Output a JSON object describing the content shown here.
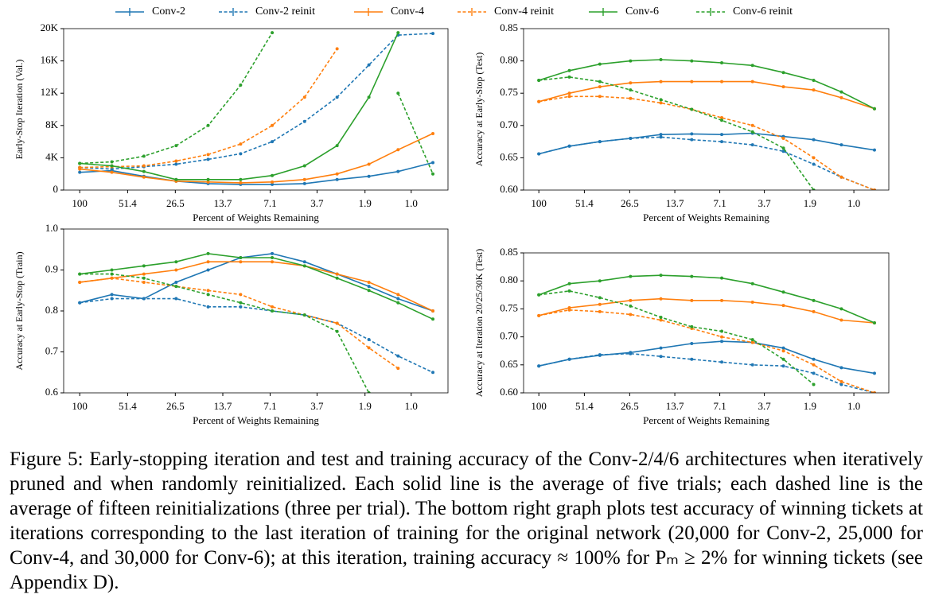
{
  "chart_data": [
    {
      "type": "line",
      "xlabel": "Percent of Weights Remaining",
      "ylabel": "Early-Stop Iteration (Val.)",
      "xlog": true,
      "legend": "top",
      "x": [
        100,
        64,
        41,
        26.2,
        16.8,
        10.7,
        6.9,
        4.4,
        2.8,
        1.8,
        1.2,
        0.74
      ],
      "xlim": [
        125,
        0.6
      ],
      "xticks": [
        100,
        51.4,
        26.5,
        13.7,
        7.1,
        3.7,
        1.9,
        {
          "value": 1,
          "label": "1.0"
        }
      ],
      "ylim": [
        0,
        20000
      ],
      "yticks": [
        0,
        {
          "value": 4000,
          "label": "4K"
        },
        {
          "value": 8000,
          "label": "8K"
        },
        {
          "value": 12000,
          "label": "12K"
        },
        {
          "value": 16000,
          "label": "16K"
        },
        {
          "value": 20000,
          "label": "20K"
        }
      ],
      "series": [
        {
          "name": "Conv-2",
          "color": "#1f77b4",
          "dashed": false,
          "values": [
            2200,
            2400,
            1700,
            1100,
            800,
            700,
            700,
            800,
            1300,
            1700,
            2300,
            3400
          ]
        },
        {
          "name": "Conv-2 reinit",
          "color": "#1f77b4",
          "dashed": true,
          "values": [
            2800,
            2600,
            2900,
            3200,
            3800,
            4500,
            6000,
            8500,
            11500,
            15500,
            19200,
            19400
          ]
        },
        {
          "name": "Conv-4",
          "color": "#ff7f0e",
          "dashed": false,
          "values": [
            2600,
            2200,
            1600,
            1100,
            1000,
            900,
            1000,
            1300,
            2000,
            3200,
            5000,
            7000
          ]
        },
        {
          "name": "Conv-4 reinit",
          "color": "#ff7f0e",
          "dashed": true,
          "values": [
            2800,
            2900,
            3000,
            3600,
            4400,
            5700,
            8000,
            11500,
            17500,
            null,
            null,
            null
          ]
        },
        {
          "name": "Conv-6",
          "color": "#2ca02c",
          "dashed": false,
          "values": [
            3300,
            3000,
            2300,
            1300,
            1300,
            1300,
            1800,
            3000,
            5500,
            11500,
            19500,
            null
          ]
        },
        {
          "name": "Conv-6 reinit",
          "color": "#2ca02c",
          "dashed": true,
          "values": [
            3300,
            3500,
            4200,
            5500,
            8000,
            13000,
            19500,
            null,
            null,
            null,
            12000,
            2000
          ]
        }
      ]
    },
    {
      "type": "line",
      "xlabel": "Percent of Weights Remaining",
      "ylabel": "Accuracy at Early-Stop (Test)",
      "xlog": true,
      "x": [
        100,
        64,
        41,
        26.2,
        16.8,
        10.7,
        6.9,
        4.4,
        2.8,
        1.8,
        1.2,
        0.74
      ],
      "xlim": [
        125,
        0.6
      ],
      "xticks": [
        100,
        51.4,
        26.5,
        13.7,
        7.1,
        3.7,
        1.9,
        {
          "value": 1,
          "label": "1.0"
        }
      ],
      "ylim": [
        0.6,
        0.85
      ],
      "yticks": [
        {
          "value": 0.6,
          "label": "0.60"
        },
        0.65,
        {
          "value": 0.7,
          "label": "0.70"
        },
        0.75,
        {
          "value": 0.8,
          "label": "0.80"
        },
        0.85
      ],
      "series": [
        {
          "color": "#1f77b4",
          "dashed": false,
          "values": [
            0.656,
            0.668,
            0.675,
            0.68,
            0.686,
            0.687,
            0.686,
            0.688,
            0.683,
            0.678,
            0.67,
            0.662
          ]
        },
        {
          "color": "#1f77b4",
          "dashed": true,
          "values": [
            0.656,
            0.668,
            0.675,
            0.68,
            0.682,
            0.678,
            0.675,
            0.67,
            0.66,
            0.64,
            0.62,
            0.6
          ]
        },
        {
          "color": "#ff7f0e",
          "dashed": false,
          "values": [
            0.737,
            0.75,
            0.76,
            0.766,
            0.768,
            0.768,
            0.768,
            0.768,
            0.76,
            0.755,
            0.743,
            0.726
          ]
        },
        {
          "color": "#ff7f0e",
          "dashed": true,
          "values": [
            0.737,
            0.745,
            0.745,
            0.742,
            0.735,
            0.725,
            0.712,
            0.7,
            0.68,
            0.65,
            0.62,
            0.6
          ]
        },
        {
          "color": "#2ca02c",
          "dashed": false,
          "values": [
            0.77,
            0.785,
            0.795,
            0.8,
            0.802,
            0.8,
            0.797,
            0.793,
            0.782,
            0.77,
            0.752,
            0.726
          ]
        },
        {
          "color": "#2ca02c",
          "dashed": true,
          "values": [
            0.77,
            0.775,
            0.768,
            0.755,
            0.74,
            0.725,
            0.708,
            0.69,
            0.665,
            0.6,
            null,
            null
          ]
        }
      ]
    },
    {
      "type": "line",
      "xlabel": "Percent of Weights Remaining",
      "ylabel": "Accuracy at Early-Stop (Train)",
      "xlog": true,
      "x": [
        100,
        64,
        41,
        26.2,
        16.8,
        10.7,
        6.9,
        4.4,
        2.8,
        1.8,
        1.2,
        0.74
      ],
      "xlim": [
        125,
        0.6
      ],
      "xticks": [
        100,
        51.4,
        26.5,
        13.7,
        7.1,
        3.7,
        1.9,
        {
          "value": 1,
          "label": "1.0"
        }
      ],
      "ylim": [
        0.6,
        1.0
      ],
      "yticks": [
        0.6,
        0.7,
        0.8,
        0.9,
        {
          "value": 1,
          "label": "1.0"
        }
      ],
      "series": [
        {
          "color": "#1f77b4",
          "dashed": false,
          "values": [
            0.82,
            0.84,
            0.83,
            0.87,
            0.9,
            0.93,
            0.94,
            0.92,
            0.89,
            0.86,
            0.83,
            0.8
          ]
        },
        {
          "color": "#1f77b4",
          "dashed": true,
          "values": [
            0.82,
            0.83,
            0.83,
            0.83,
            0.81,
            0.81,
            0.8,
            0.79,
            0.77,
            0.73,
            0.69,
            0.65
          ]
        },
        {
          "color": "#ff7f0e",
          "dashed": false,
          "values": [
            0.87,
            0.88,
            0.89,
            0.9,
            0.92,
            0.92,
            0.92,
            0.91,
            0.89,
            0.87,
            0.84,
            0.8
          ]
        },
        {
          "color": "#ff7f0e",
          "dashed": true,
          "values": [
            0.87,
            0.88,
            0.87,
            0.86,
            0.85,
            0.84,
            0.81,
            0.79,
            0.77,
            0.71,
            0.66,
            null
          ]
        },
        {
          "color": "#2ca02c",
          "dashed": false,
          "values": [
            0.89,
            0.9,
            0.91,
            0.92,
            0.94,
            0.93,
            0.93,
            0.91,
            0.88,
            0.85,
            0.82,
            0.78
          ]
        },
        {
          "color": "#2ca02c",
          "dashed": true,
          "values": [
            0.89,
            0.89,
            0.88,
            0.86,
            0.84,
            0.82,
            0.8,
            0.79,
            0.75,
            0.6,
            null,
            null
          ]
        }
      ]
    },
    {
      "type": "line",
      "xlabel": "Percent of Weights Remaining",
      "ylabel": "Accuracy at Iteration 20/25/30K (Test)",
      "xlog": true,
      "x": [
        100,
        64,
        41,
        26.2,
        16.8,
        10.7,
        6.9,
        4.4,
        2.8,
        1.8,
        1.2,
        0.74
      ],
      "xlim": [
        125,
        0.6
      ],
      "xticks": [
        100,
        51.4,
        26.5,
        13.7,
        7.1,
        3.7,
        1.9,
        {
          "value": 1,
          "label": "1.0"
        }
      ],
      "ylim": [
        0.6,
        0.85
      ],
      "yticks": [
        {
          "value": 0.6,
          "label": "0.60"
        },
        0.65,
        {
          "value": 0.7,
          "label": "0.70"
        },
        0.75,
        {
          "value": 0.8,
          "label": "0.80"
        },
        0.85
      ],
      "series": [
        {
          "color": "#1f77b4",
          "dashed": false,
          "values": [
            0.648,
            0.66,
            0.667,
            0.672,
            0.68,
            0.688,
            0.692,
            0.69,
            0.68,
            0.66,
            0.645,
            0.635
          ]
        },
        {
          "color": "#1f77b4",
          "dashed": true,
          "values": [
            0.648,
            0.66,
            0.668,
            0.67,
            0.665,
            0.66,
            0.655,
            0.65,
            0.648,
            0.635,
            0.615,
            0.6
          ]
        },
        {
          "color": "#ff7f0e",
          "dashed": false,
          "values": [
            0.738,
            0.752,
            0.758,
            0.765,
            0.768,
            0.765,
            0.765,
            0.762,
            0.756,
            0.745,
            0.73,
            0.725
          ]
        },
        {
          "color": "#ff7f0e",
          "dashed": true,
          "values": [
            0.738,
            0.748,
            0.745,
            0.74,
            0.73,
            0.715,
            0.7,
            0.69,
            0.675,
            0.65,
            0.62,
            0.6
          ]
        },
        {
          "color": "#2ca02c",
          "dashed": false,
          "values": [
            0.775,
            0.795,
            0.8,
            0.808,
            0.81,
            0.808,
            0.805,
            0.795,
            0.78,
            0.765,
            0.75,
            0.725
          ]
        },
        {
          "color": "#2ca02c",
          "dashed": true,
          "values": [
            0.775,
            0.782,
            0.77,
            0.755,
            0.735,
            0.718,
            0.71,
            0.695,
            0.66,
            0.615,
            null,
            null
          ]
        }
      ]
    }
  ],
  "caption": "Figure 5: Early-stopping iteration and test and training accuracy of the Conv-2/4/6 architectures when iteratively pruned and when randomly reinitialized. Each solid line is the average of five trials; each dashed line is the average of fifteen reinitializations (three per trial). The bottom right graph plots test accuracy of winning tickets at iterations corresponding to the last iteration of training for the original network (20,000 for Conv-2, 25,000 for Conv-4, and 30,000 for Conv-6); at this iteration, training accuracy ≈ 100% for Pₘ ≥ 2% for winning tickets (see Appendix D)."
}
